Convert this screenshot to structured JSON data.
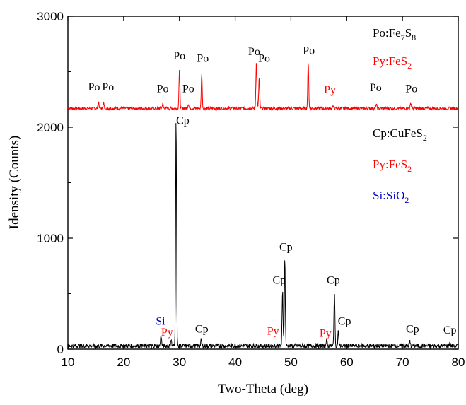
{
  "chart_data": {
    "type": "line",
    "xlabel": "Two-Theta (deg)",
    "ylabel": "Idensity (Counts)",
    "xlim": [
      10,
      80
    ],
    "ylim": [
      0,
      3000
    ],
    "x_ticks": [
      "10",
      "20",
      "30",
      "40",
      "50",
      "60",
      "70",
      "80"
    ],
    "y_ticks": [
      "0",
      "1000",
      "2000",
      "3000"
    ],
    "colors": {
      "top": "#ff0000",
      "bottom": "#000000",
      "si": "#0000cc",
      "text": "#000000"
    },
    "series": [
      {
        "color": "#ff0000",
        "baseline": 2170,
        "peaks": [
          {
            "x": 15.5,
            "y": 2230
          },
          {
            "x": 16.4,
            "y": 2220
          },
          {
            "x": 27.0,
            "y": 2215
          },
          {
            "x": 30.0,
            "y": 2520
          },
          {
            "x": 31.6,
            "y": 2215
          },
          {
            "x": 34.0,
            "y": 2490
          },
          {
            "x": 43.8,
            "y": 2600
          },
          {
            "x": 44.3,
            "y": 2450
          },
          {
            "x": 53.1,
            "y": 2600
          },
          {
            "x": 57.5,
            "y": 2190
          },
          {
            "x": 65.3,
            "y": 2210
          },
          {
            "x": 71.5,
            "y": 2220
          }
        ]
      },
      {
        "color": "#000000",
        "baseline": 30,
        "peaks": [
          {
            "x": 26.7,
            "y": 130
          },
          {
            "x": 28.5,
            "y": 90
          },
          {
            "x": 29.4,
            "y": 2080
          },
          {
            "x": 33.9,
            "y": 80
          },
          {
            "x": 48.5,
            "y": 520
          },
          {
            "x": 48.9,
            "y": 810
          },
          {
            "x": 56.4,
            "y": 80
          },
          {
            "x": 57.8,
            "y": 520
          },
          {
            "x": 58.5,
            "y": 160
          },
          {
            "x": 71.3,
            "y": 70
          },
          {
            "x": 78.5,
            "y": 60
          }
        ]
      }
    ],
    "peak_labels": [
      {
        "text": "Po",
        "x": 14.7,
        "y": 2330,
        "color": "#000000"
      },
      {
        "text": "Po",
        "x": 17.2,
        "y": 2330,
        "color": "#000000"
      },
      {
        "text": "Po",
        "x": 27.0,
        "y": 2315,
        "color": "#000000"
      },
      {
        "text": "Po",
        "x": 30.0,
        "y": 2610,
        "color": "#000000"
      },
      {
        "text": "Po",
        "x": 31.6,
        "y": 2315,
        "color": "#000000"
      },
      {
        "text": "Po",
        "x": 34.2,
        "y": 2590,
        "color": "#000000"
      },
      {
        "text": "Po",
        "x": 43.4,
        "y": 2650,
        "color": "#000000"
      },
      {
        "text": "Po",
        "x": 45.2,
        "y": 2590,
        "color": "#000000"
      },
      {
        "text": "Po",
        "x": 53.2,
        "y": 2660,
        "color": "#000000"
      },
      {
        "text": "Py",
        "x": 57.0,
        "y": 2305,
        "color": "#ff0000"
      },
      {
        "text": "Po",
        "x": 65.2,
        "y": 2325,
        "color": "#000000"
      },
      {
        "text": "Po",
        "x": 71.6,
        "y": 2315,
        "color": "#000000"
      },
      {
        "text": "Cp",
        "x": 30.6,
        "y": 2030,
        "color": "#000000"
      },
      {
        "text": "Si",
        "x": 26.6,
        "y": 220,
        "color": "#0000cc"
      },
      {
        "text": "Py",
        "x": 27.8,
        "y": 120,
        "color": "#ff0000"
      },
      {
        "text": "Cp",
        "x": 34.0,
        "y": 150,
        "color": "#000000"
      },
      {
        "text": "Cp",
        "x": 47.9,
        "y": 590,
        "color": "#000000"
      },
      {
        "text": "Cp",
        "x": 49.1,
        "y": 890,
        "color": "#000000"
      },
      {
        "text": "Py",
        "x": 46.8,
        "y": 130,
        "color": "#ff0000"
      },
      {
        "text": "Cp",
        "x": 57.6,
        "y": 590,
        "color": "#000000"
      },
      {
        "text": "Cp",
        "x": 59.6,
        "y": 220,
        "color": "#000000"
      },
      {
        "text": "Py",
        "x": 56.2,
        "y": 110,
        "color": "#ff0000"
      },
      {
        "text": "Cp",
        "x": 71.8,
        "y": 150,
        "color": "#000000"
      },
      {
        "text": "Cp",
        "x": 78.5,
        "y": 140,
        "color": "#000000"
      }
    ],
    "legend_top": [
      {
        "base": "Po:Fe",
        "sub1": "7",
        "mid": "S",
        "sub2": "8",
        "color": "#000000"
      },
      {
        "base": "Py:FeS",
        "sub1": "2",
        "mid": "",
        "sub2": "",
        "color": "#ff0000"
      }
    ],
    "legend_bottom": [
      {
        "base": "Cp:CuFeS",
        "sub1": "2",
        "mid": "",
        "sub2": "",
        "color": "#000000"
      },
      {
        "base": "Py:FeS",
        "sub1": "2",
        "mid": "",
        "sub2": "",
        "color": "#ff0000"
      },
      {
        "base": "Si:SiO",
        "sub1": "2",
        "mid": "",
        "sub2": "",
        "color": "#0000cc"
      }
    ]
  }
}
